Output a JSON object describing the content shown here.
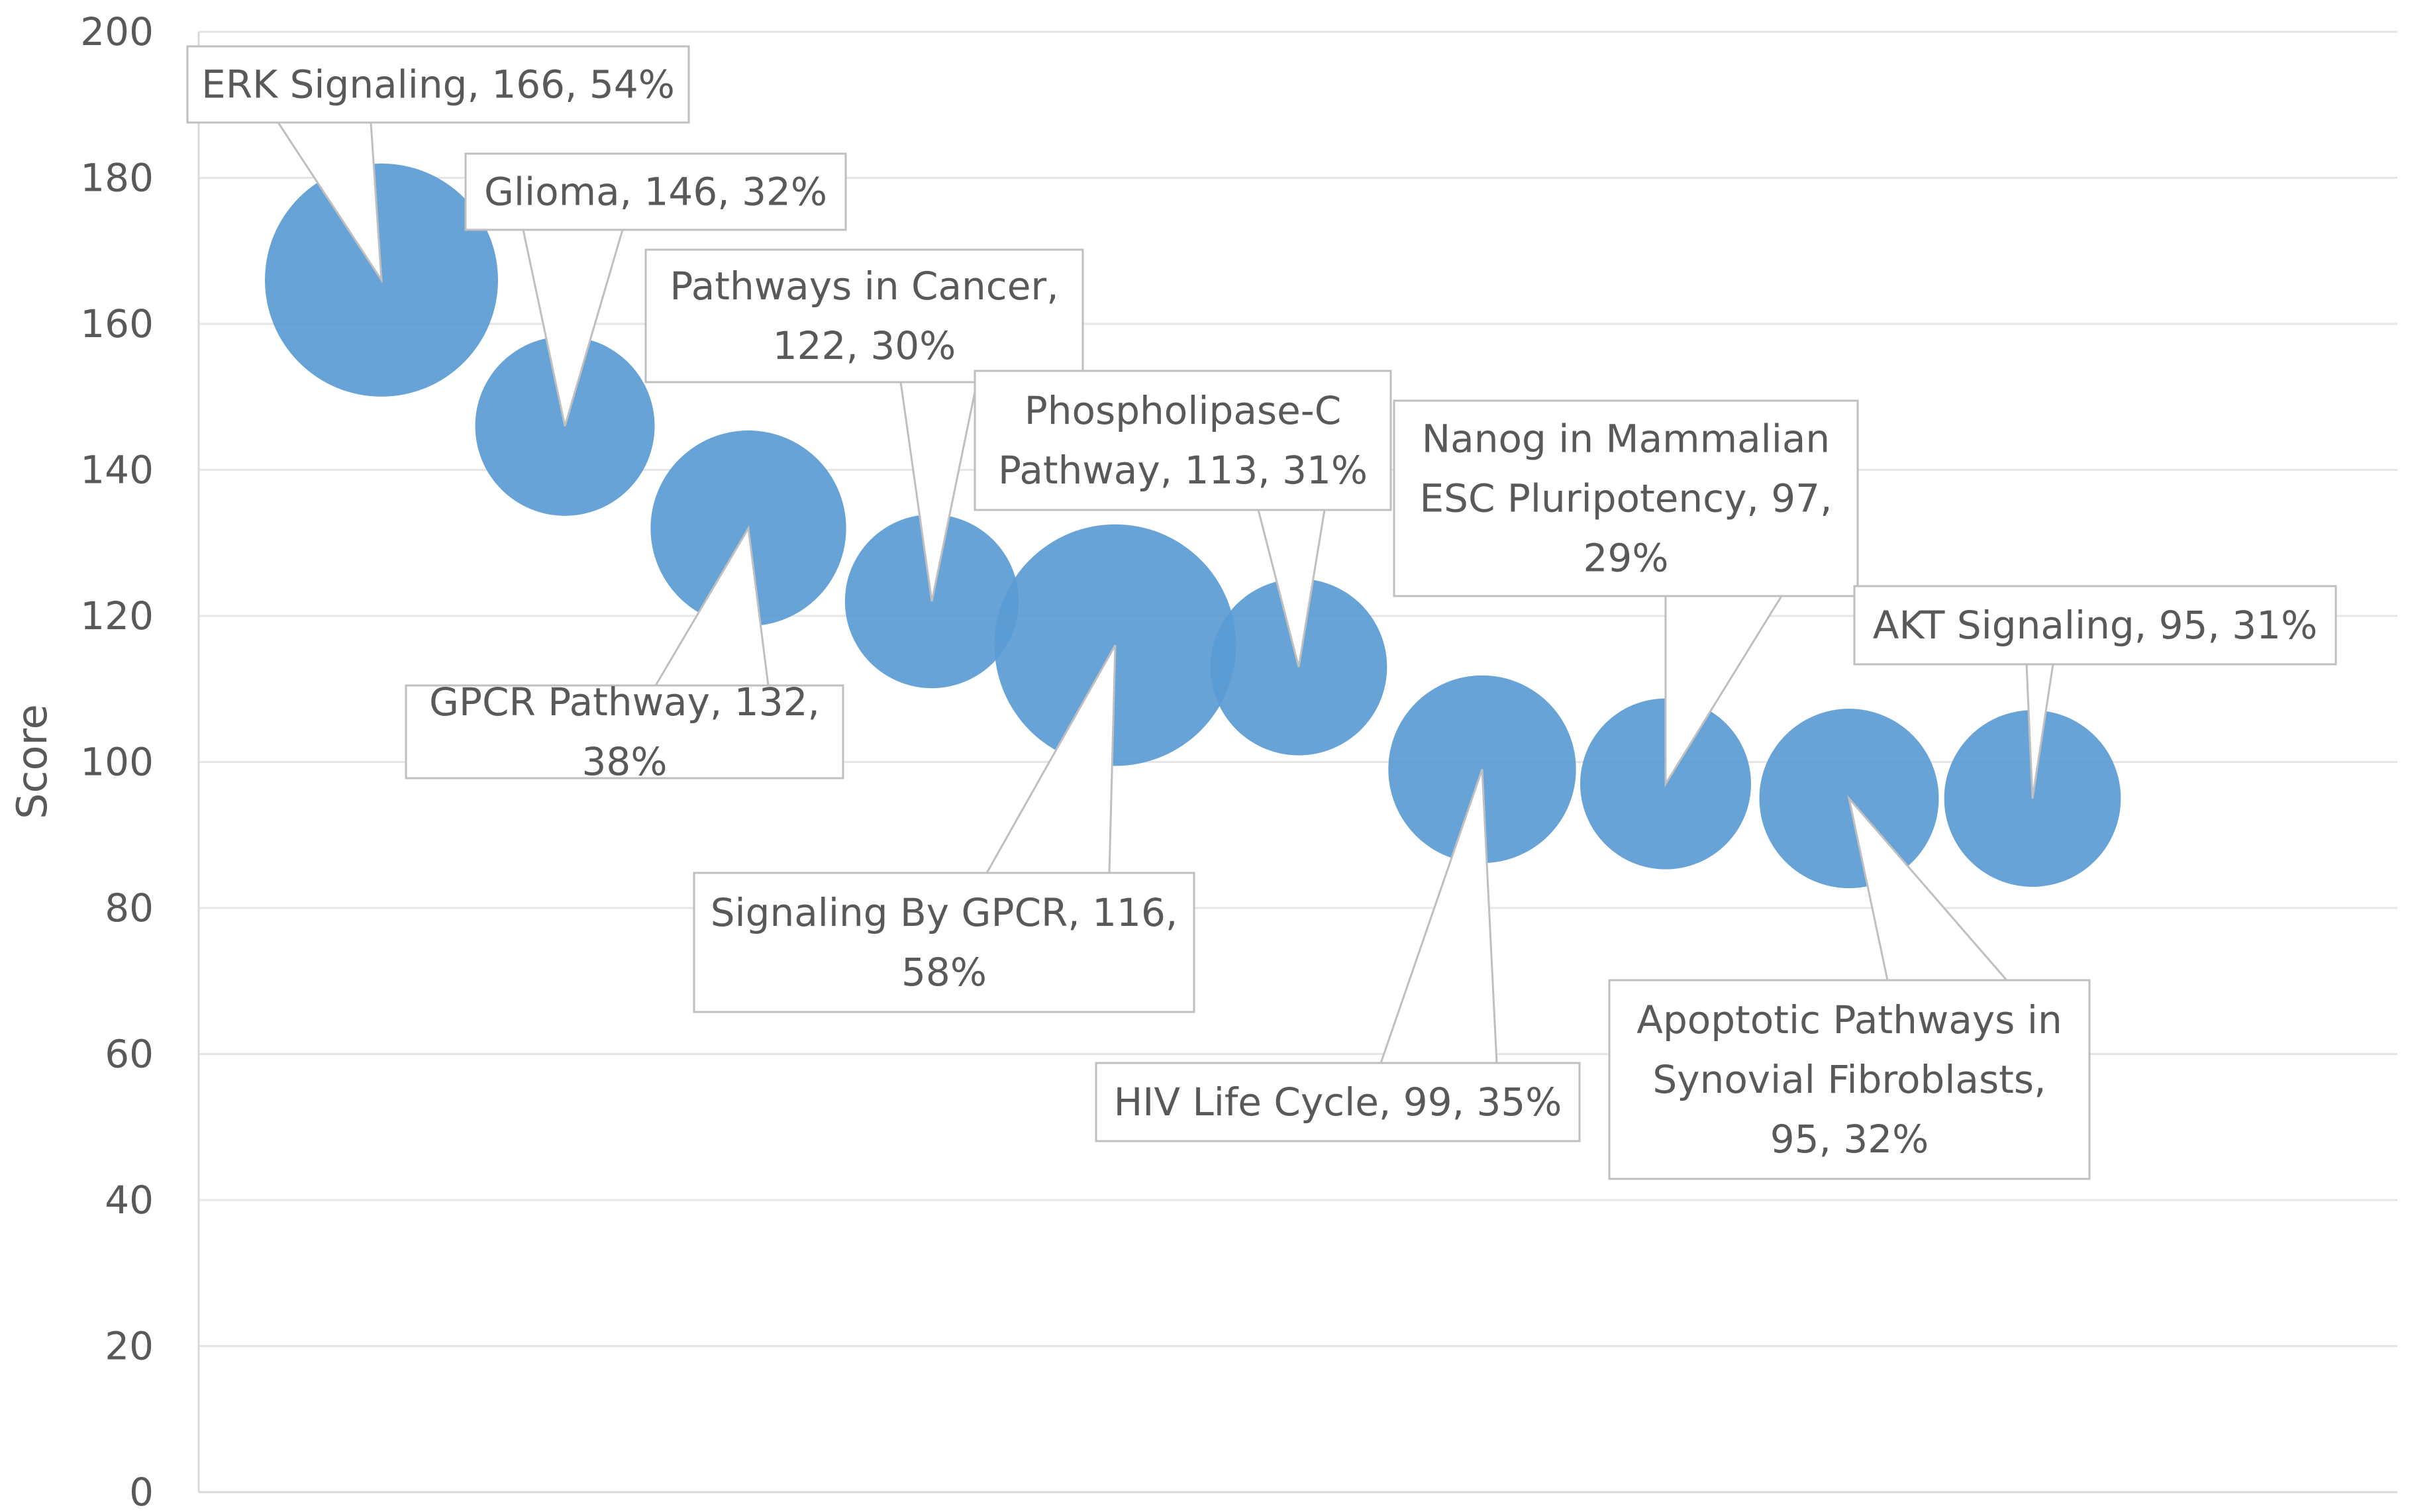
{
  "chart_data": {
    "type": "bubble",
    "title": "",
    "xlabel": "",
    "ylabel": "Score",
    "ylim": [
      0,
      200
    ],
    "yticks": [
      0,
      20,
      40,
      60,
      80,
      100,
      120,
      140,
      160,
      180,
      200
    ],
    "grid": true,
    "legend": "none",
    "series": [
      {
        "name": "Pathways",
        "color": "#5b9bd5",
        "points": [
          {
            "x": 1,
            "y": 166,
            "size": 54,
            "label": [
              "ERK Signaling, 166, 54%"
            ]
          },
          {
            "x": 2,
            "y": 146,
            "size": 32,
            "label": [
              "Glioma, 146, 32%"
            ]
          },
          {
            "x": 3,
            "y": 132,
            "size": 38,
            "label": [
              "GPCR Pathway, 132,",
              "38%"
            ]
          },
          {
            "x": 4,
            "y": 122,
            "size": 30,
            "label": [
              "Pathways in Cancer,",
              "122, 30%"
            ]
          },
          {
            "x": 5,
            "y": 116,
            "size": 58,
            "label": [
              "Signaling By GPCR, 116,",
              "58%"
            ]
          },
          {
            "x": 6,
            "y": 113,
            "size": 31,
            "label": [
              "Phospholipase-C",
              "Pathway, 113, 31%"
            ]
          },
          {
            "x": 7,
            "y": 99,
            "size": 35,
            "label": [
              "HIV Life Cycle, 99, 35%"
            ]
          },
          {
            "x": 8,
            "y": 97,
            "size": 29,
            "label": [
              "Nanog in Mammalian",
              "ESC Pluripotency, 97,",
              "29%"
            ]
          },
          {
            "x": 9,
            "y": 95,
            "size": 32,
            "label": [
              "Apoptotic Pathways in",
              "Synovial Fibroblasts,",
              "95, 32%"
            ]
          },
          {
            "x": 10,
            "y": 95,
            "size": 31,
            "label": [
              "AKT Signaling, 95, 31%"
            ]
          }
        ]
      }
    ]
  }
}
